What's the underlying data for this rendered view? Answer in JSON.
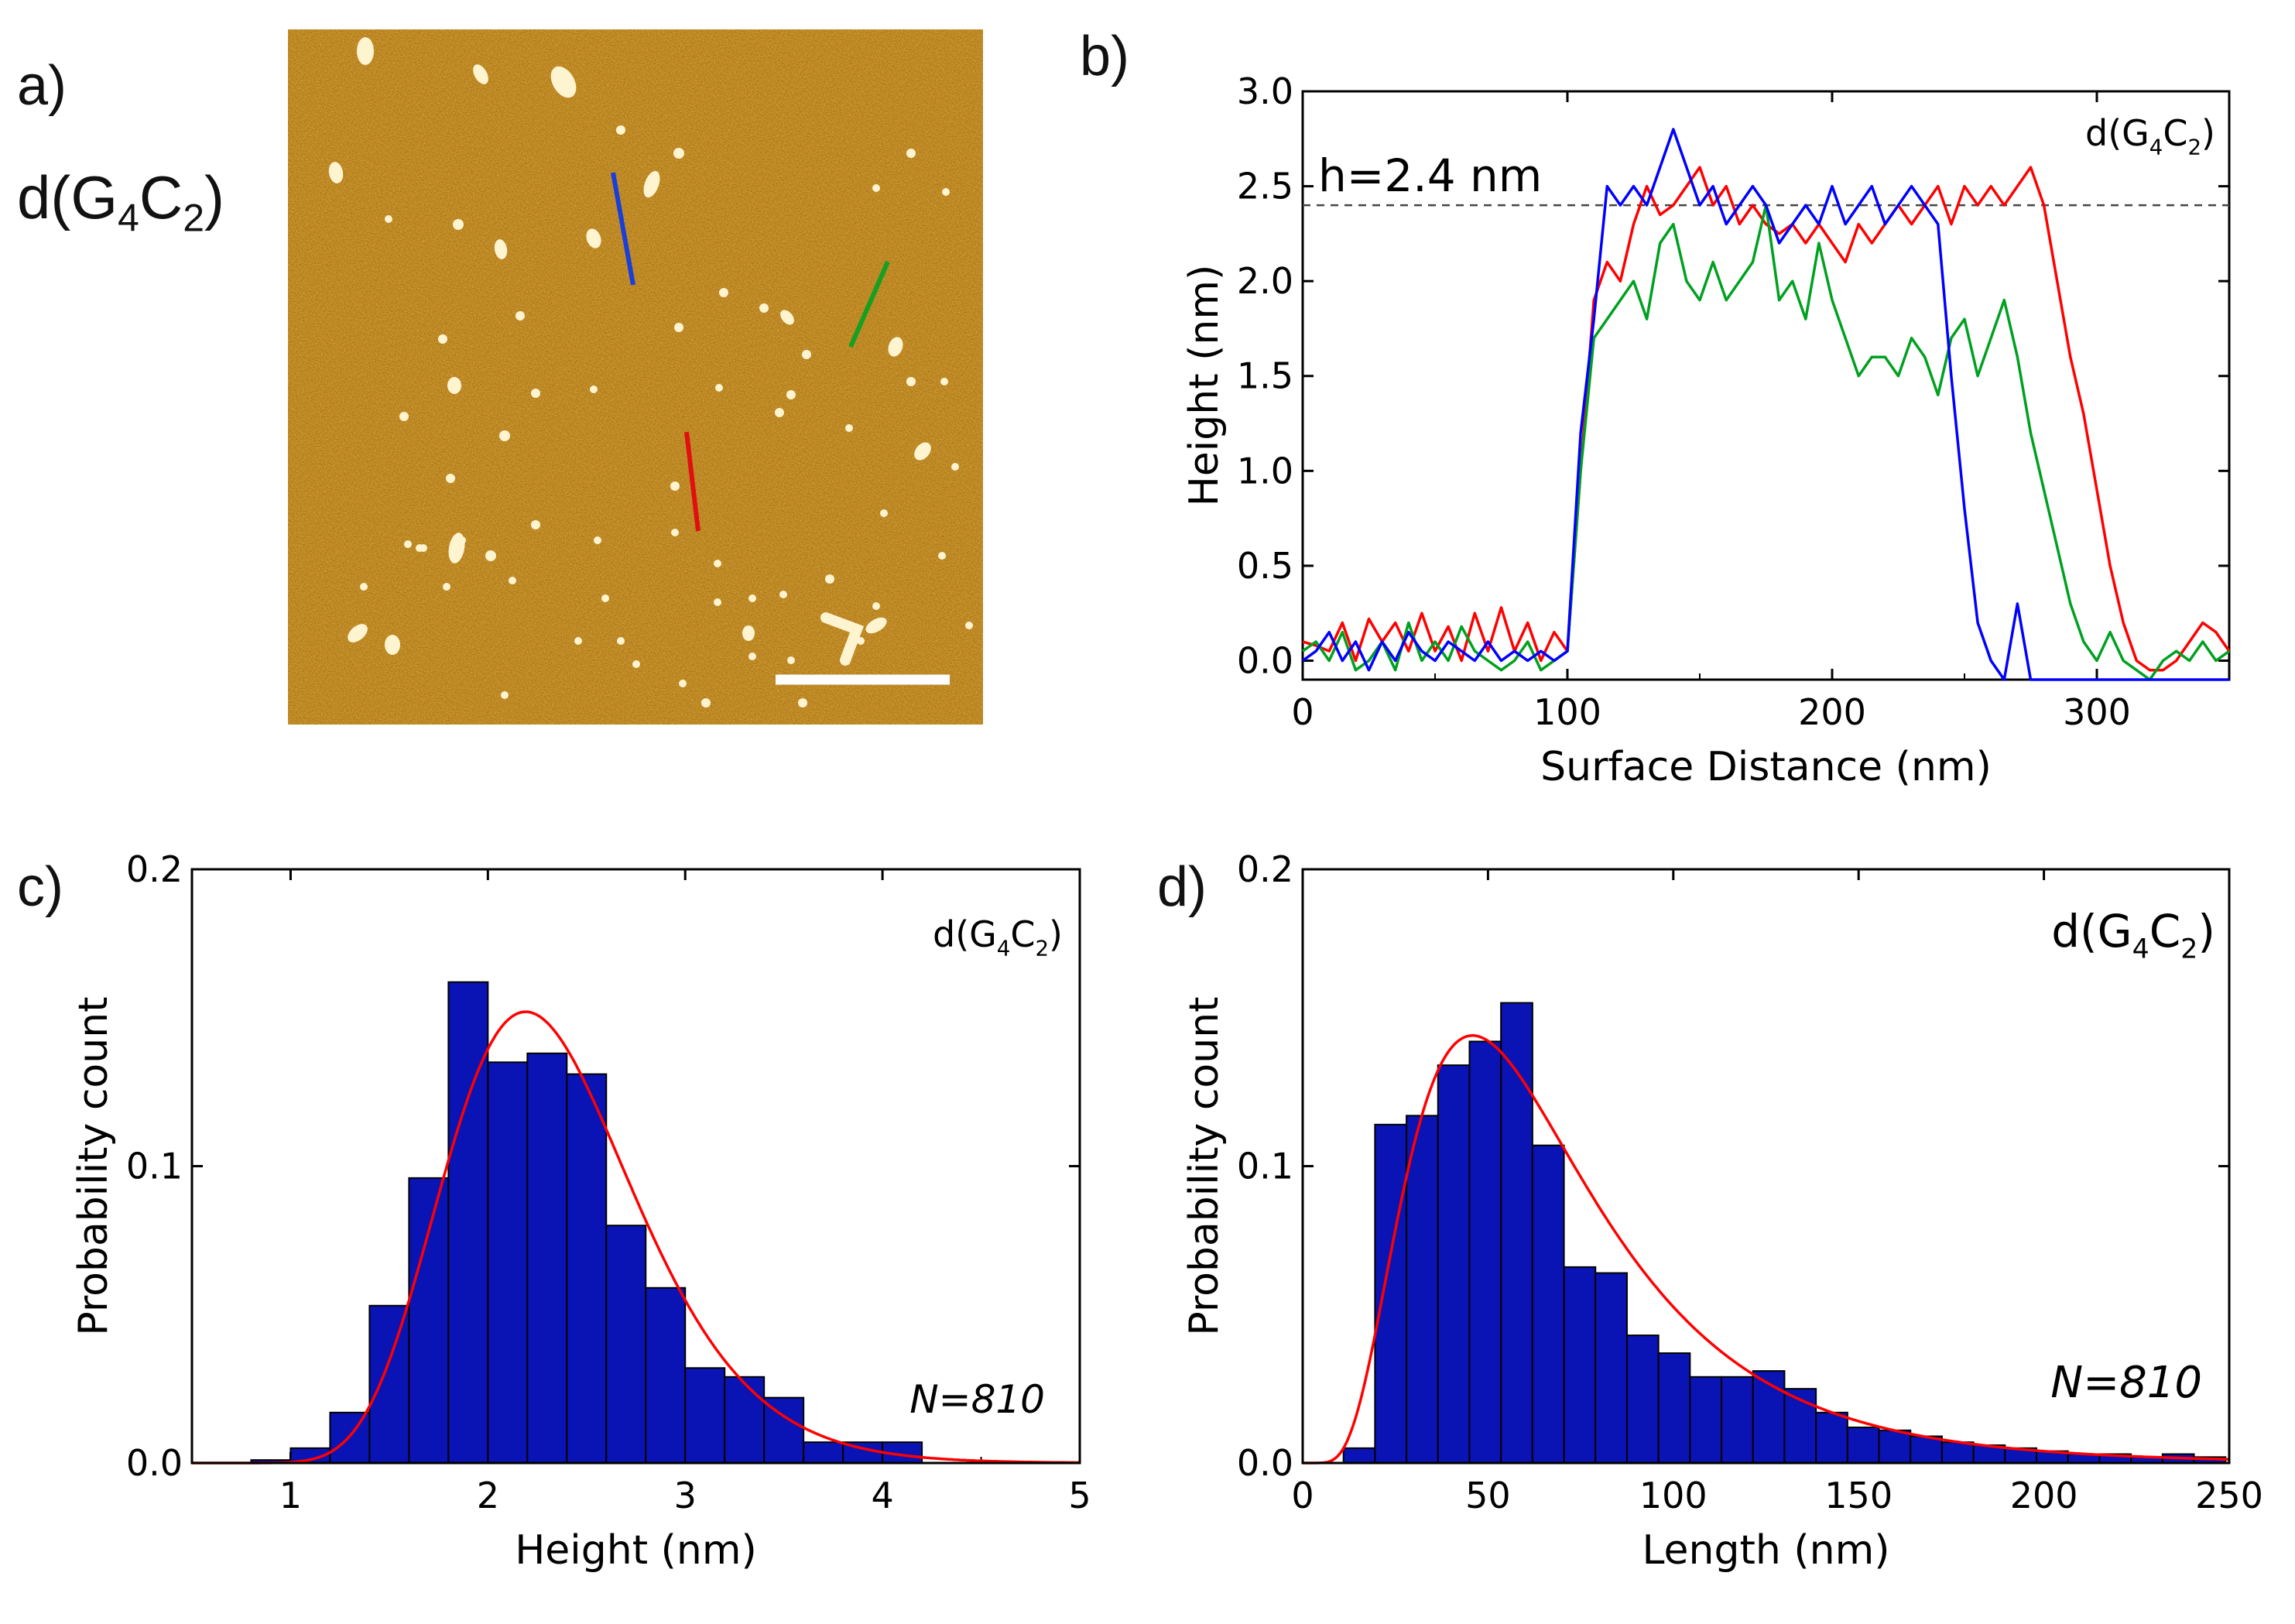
{
  "panel_a": {
    "label": "a)",
    "sample": {
      "main": "d(G",
      "sub1": "4",
      "mid": "C",
      "sub2": "2",
      "close": ")"
    },
    "colors": {
      "surface": "#8a4a08",
      "particle": "#fff4d0",
      "scale_bar": "#ffffff"
    },
    "profile_lines": [
      {
        "name": "blue-profile",
        "color": "#1a3fd9"
      },
      {
        "name": "green-profile",
        "color": "#14a020"
      },
      {
        "name": "red-profile",
        "color": "#e01010"
      }
    ]
  },
  "chart_data": [
    {
      "type": "line",
      "panel": "b)",
      "xlabel": "Surface Distance (nm)",
      "ylabel": "Height (nm)",
      "xlim": [
        0,
        350
      ],
      "ylim": [
        -0.1,
        3.0
      ],
      "xticks": [
        0,
        100,
        200,
        300
      ],
      "yticks": [
        0.0,
        0.5,
        1.0,
        1.5,
        2.0,
        2.5,
        3.0
      ],
      "annotation": "h=2.4 nm",
      "reference_line": 2.4,
      "sample": {
        "main": "d(G",
        "sub1": "4",
        "mid": "C",
        "sub2": "2",
        "close": ")"
      },
      "series": [
        {
          "color": "#ff0000",
          "x": [
            0,
            5,
            10,
            15,
            20,
            25,
            30,
            35,
            40,
            45,
            50,
            55,
            60,
            65,
            70,
            75,
            80,
            85,
            90,
            95,
            100,
            105,
            110,
            115,
            120,
            125,
            130,
            135,
            140,
            145,
            150,
            155,
            160,
            165,
            170,
            175,
            180,
            185,
            190,
            195,
            200,
            205,
            210,
            215,
            220,
            225,
            230,
            235,
            240,
            245,
            250,
            255,
            260,
            265,
            270,
            275,
            280,
            285,
            290,
            295,
            300,
            305,
            310,
            315,
            320,
            325,
            330,
            335,
            340,
            345,
            350
          ],
          "y": [
            0.1,
            0.08,
            0.05,
            0.2,
            0.0,
            0.22,
            0.1,
            0.2,
            0.05,
            0.25,
            0.05,
            0.18,
            0.0,
            0.25,
            0.05,
            0.28,
            0.05,
            0.2,
            0.0,
            0.15,
            0.05,
            1.0,
            1.9,
            2.1,
            2.0,
            2.3,
            2.5,
            2.35,
            2.4,
            2.5,
            2.6,
            2.4,
            2.5,
            2.3,
            2.4,
            2.3,
            2.25,
            2.3,
            2.2,
            2.3,
            2.2,
            2.1,
            2.3,
            2.2,
            2.3,
            2.4,
            2.3,
            2.4,
            2.5,
            2.3,
            2.5,
            2.4,
            2.5,
            2.4,
            2.5,
            2.6,
            2.4,
            2.0,
            1.6,
            1.3,
            0.9,
            0.5,
            0.2,
            0.0,
            -0.05,
            -0.05,
            0.0,
            0.1,
            0.2,
            0.15,
            0.05
          ]
        },
        {
          "color": "#00a020",
          "x": [
            0,
            5,
            10,
            15,
            20,
            25,
            30,
            35,
            40,
            45,
            50,
            55,
            60,
            65,
            70,
            75,
            80,
            85,
            90,
            95,
            100,
            105,
            110,
            115,
            120,
            125,
            130,
            135,
            140,
            145,
            150,
            155,
            160,
            165,
            170,
            175,
            180,
            185,
            190,
            195,
            200,
            205,
            210,
            215,
            220,
            225,
            230,
            235,
            240,
            245,
            250,
            255,
            260,
            265,
            270,
            275,
            280,
            285,
            290,
            295,
            300,
            305,
            310,
            315,
            320,
            325,
            330,
            335,
            340,
            345,
            350
          ],
          "y": [
            0.05,
            0.1,
            0.0,
            0.15,
            -0.05,
            0.0,
            0.1,
            -0.05,
            0.2,
            0.0,
            0.1,
            0.0,
            0.18,
            0.05,
            0.0,
            -0.05,
            0.0,
            0.1,
            -0.05,
            0.0,
            0.05,
            1.0,
            1.7,
            1.8,
            1.9,
            2.0,
            1.8,
            2.2,
            2.3,
            2.0,
            1.9,
            2.1,
            1.9,
            2.0,
            2.1,
            2.4,
            1.9,
            2.0,
            1.8,
            2.2,
            1.9,
            1.7,
            1.5,
            1.6,
            1.6,
            1.5,
            1.7,
            1.6,
            1.4,
            1.7,
            1.8,
            1.5,
            1.7,
            1.9,
            1.6,
            1.2,
            0.9,
            0.6,
            0.3,
            0.1,
            0.0,
            0.15,
            0.0,
            -0.05,
            -0.1,
            0.0,
            0.05,
            0.0,
            0.1,
            0.0,
            0.05
          ]
        },
        {
          "color": "#0000ff",
          "x": [
            0,
            5,
            10,
            15,
            20,
            25,
            30,
            35,
            40,
            45,
            50,
            55,
            60,
            65,
            70,
            75,
            80,
            85,
            90,
            95,
            100,
            105,
            110,
            115,
            120,
            125,
            130,
            135,
            140,
            145,
            150,
            155,
            160,
            165,
            170,
            175,
            180,
            185,
            190,
            195,
            200,
            205,
            210,
            215,
            220,
            225,
            230,
            235,
            240,
            245,
            250,
            255,
            260,
            265,
            270,
            275,
            280,
            285,
            290,
            295,
            300,
            305,
            310,
            315,
            320,
            325,
            330,
            335,
            340,
            345,
            350
          ],
          "y": [
            0.0,
            0.05,
            0.15,
            0.0,
            0.1,
            -0.05,
            0.1,
            0.0,
            0.15,
            0.05,
            0.0,
            0.1,
            0.05,
            0.0,
            0.1,
            0.0,
            0.05,
            0.0,
            0.05,
            0.0,
            0.05,
            1.2,
            1.8,
            2.5,
            2.4,
            2.5,
            2.4,
            2.6,
            2.8,
            2.6,
            2.4,
            2.5,
            2.3,
            2.4,
            2.5,
            2.4,
            2.2,
            2.3,
            2.4,
            2.3,
            2.5,
            2.3,
            2.4,
            2.5,
            2.3,
            2.4,
            2.5,
            2.4,
            2.3,
            1.5,
            0.8,
            0.2,
            0.0,
            -0.1,
            0.3,
            -0.1,
            -0.1,
            -0.1,
            -0.1,
            -0.1,
            -0.1,
            -0.1,
            -0.1,
            -0.1,
            -0.1,
            -0.1,
            -0.1,
            -0.1,
            -0.1,
            -0.1,
            -0.1
          ]
        }
      ]
    },
    {
      "type": "bar",
      "panel": "c)",
      "xlabel": "Height (nm)",
      "ylabel": "Probability count",
      "xlim": [
        0.5,
        5
      ],
      "ylim": [
        0,
        0.2
      ],
      "xticks": [
        1,
        2,
        3,
        4,
        5
      ],
      "yticks": [
        0.0,
        0.1,
        0.2
      ],
      "annotation": "N=810",
      "sample": {
        "main": "d(G",
        "sub1": "4",
        "mid": "C",
        "sub2": "2",
        "close": ")"
      },
      "bin_width": 0.2,
      "bin_starts": [
        0.8,
        1.0,
        1.2,
        1.4,
        1.6,
        1.8,
        2.0,
        2.2,
        2.4,
        2.6,
        2.8,
        3.0,
        3.2,
        3.4,
        3.6,
        3.8,
        4.0
      ],
      "values": [
        0.001,
        0.005,
        0.017,
        0.053,
        0.096,
        0.162,
        0.135,
        0.138,
        0.131,
        0.08,
        0.059,
        0.032,
        0.029,
        0.022,
        0.007,
        0.007,
        0.007
      ],
      "fit": {
        "type": "lognormal",
        "color": "#ff0000",
        "peak_x": 2.2,
        "peak_y": 0.152
      }
    },
    {
      "type": "bar",
      "panel": "d)",
      "xlabel": "Length (nm)",
      "ylabel": "Probability count",
      "xlim": [
        0,
        250
      ],
      "ylim": [
        0,
        0.2
      ],
      "xticks": [
        0,
        50,
        100,
        150,
        200,
        250
      ],
      "yticks": [
        0.0,
        0.1,
        0.2
      ],
      "annotation": "N=810",
      "sample": {
        "main": "d(G",
        "sub1": "4",
        "mid": "C",
        "sub2": "2",
        "close": ")"
      },
      "bin_width": 8.5,
      "bin_starts": [
        11,
        19.5,
        28,
        36.5,
        45,
        53.5,
        62,
        70.5,
        79,
        87.5,
        96,
        104.5,
        113,
        121.5,
        130,
        138.5,
        147,
        155.5,
        164,
        172.5,
        181,
        189.5,
        198,
        206.5,
        215,
        223.5,
        232,
        240.5
      ],
      "values": [
        0.005,
        0.114,
        0.117,
        0.134,
        0.142,
        0.155,
        0.107,
        0.066,
        0.064,
        0.043,
        0.037,
        0.029,
        0.029,
        0.031,
        0.025,
        0.017,
        0.012,
        0.011,
        0.009,
        0.007,
        0.006,
        0.005,
        0.004,
        0.003,
        0.003,
        0.002,
        0.003,
        0.002
      ],
      "fit": {
        "type": "lognormal",
        "color": "#ff0000",
        "peak_x": 42,
        "peak_y": 0.144
      }
    }
  ]
}
